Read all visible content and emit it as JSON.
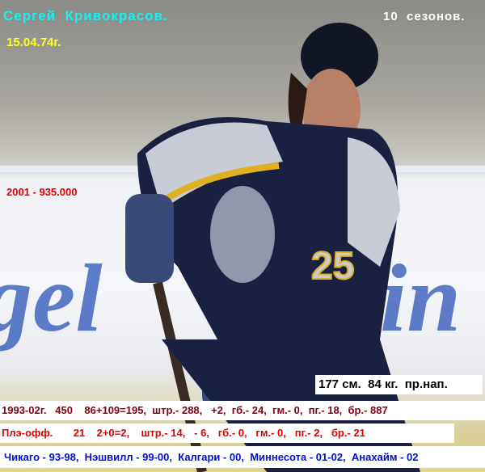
{
  "player": {
    "name": "Сергей  Кривокрасов.",
    "birth_date": "15.04.74г.",
    "seasons": "10  сезонов.",
    "salary": "2001 - 935.000",
    "physical": "177 см.  84 кг.  пр.нап."
  },
  "stats": {
    "regular": "1993-02г.   450    86+109=195,  штр.- 288,   +2,  гб.- 24,  гм.- 0,  пг.- 18,  бр.- 887",
    "playoffs": "Плэ-офф.       21    2+0=2,    штр.- 14,   - 6,   гб.- 0,   гм.- 0,   пг.- 2,   бр.- 21",
    "teams": "Чикаго - 93-98,  Нэшвилл - 99-00,  Калгари - 00,  Миннесота - 01-02,  Анахайм - 02"
  },
  "jersey_number": "25",
  "colors": {
    "name": "#19f0f0",
    "date": "#ffff20",
    "salary": "#e00000",
    "regular": "#800010",
    "playoffs": "#e00000",
    "teams": "#0010d0"
  }
}
